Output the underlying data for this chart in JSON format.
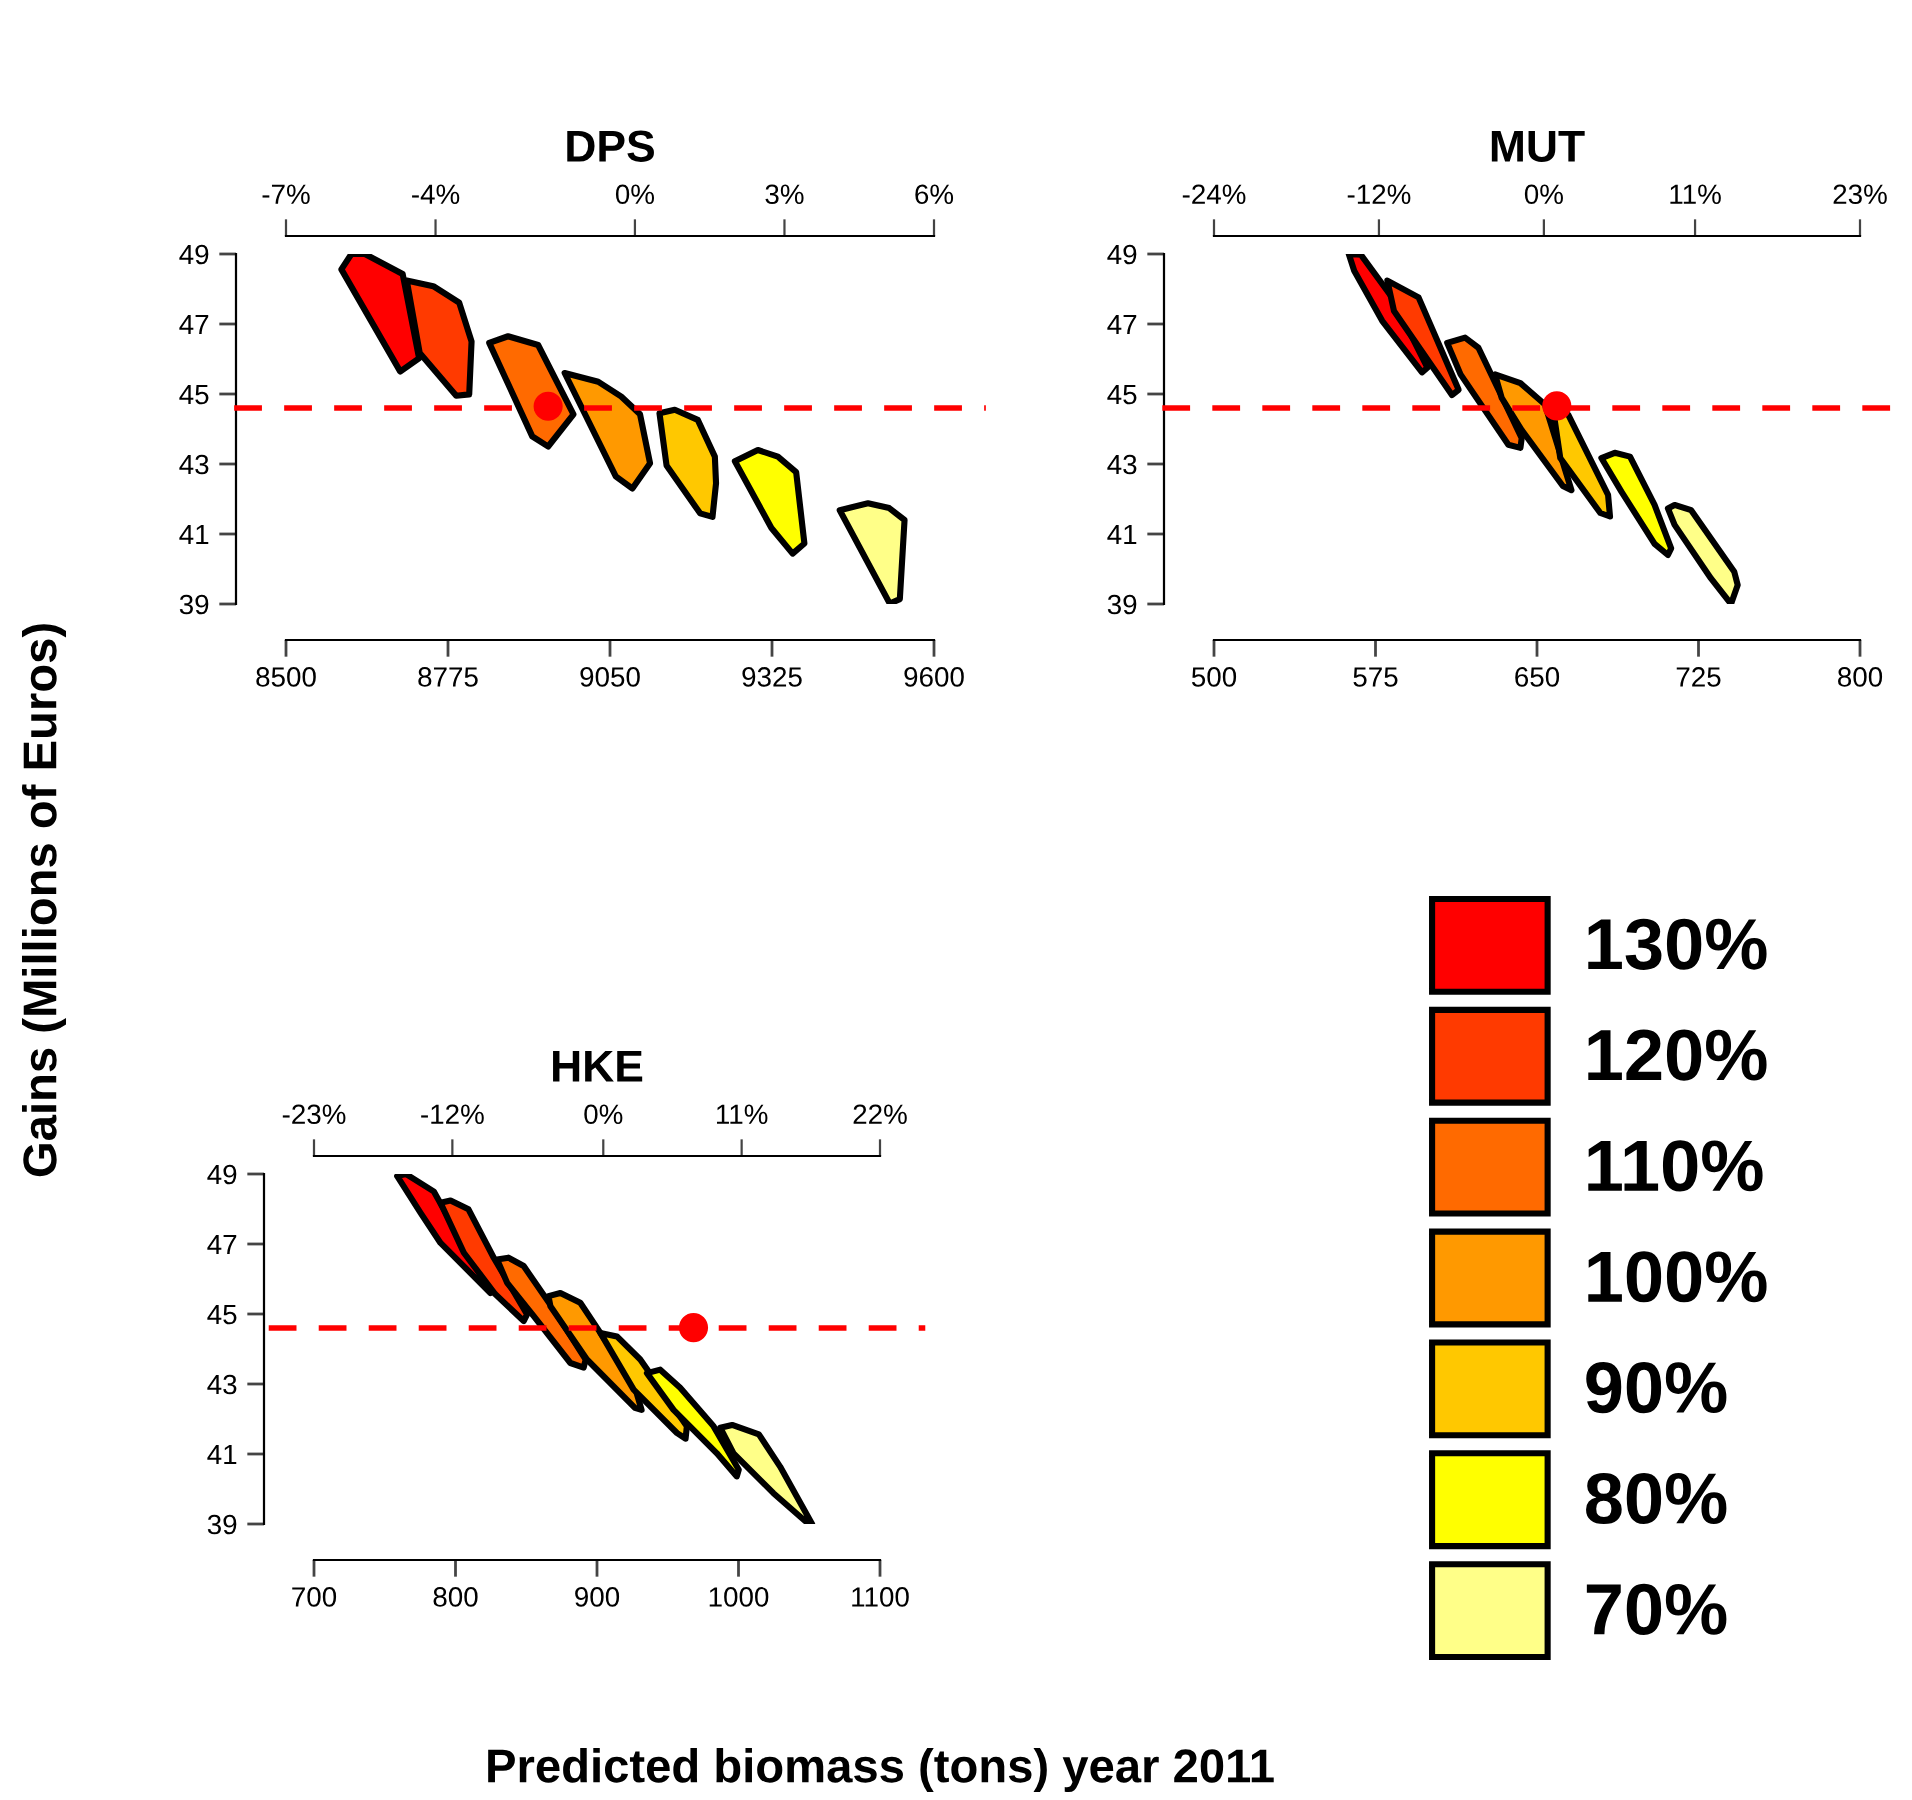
{
  "chart_data": [
    {
      "type": "area",
      "title": "DPS",
      "ylabel": "Gains (Millions of Euros)",
      "xlim": [
        8500,
        9600
      ],
      "ylim": [
        39,
        49
      ],
      "xticks": [
        8500,
        8775,
        9050,
        9325,
        9600
      ],
      "yticks": [
        39,
        41,
        43,
        45,
        47,
        49
      ],
      "x2lim": [
        -7,
        6
      ],
      "x2ticks": [
        {
          "value": -7,
          "label": "-7%"
        },
        {
          "value": -4,
          "label": "-4%"
        },
        {
          "value": 0,
          "label": "0%"
        },
        {
          "value": 3,
          "label": "3%"
        },
        {
          "value": 6,
          "label": "6%"
        }
      ],
      "grid": false,
      "legend": false,
      "ref_lines": [
        {
          "axis": "y",
          "value": 44.6,
          "label": null,
          "color": "#ff0000",
          "line_style": "dashed"
        }
      ],
      "series": [
        {
          "color": "#ff0000",
          "x": [
            8594,
            8611,
            8634,
            8698,
            8726,
            8694
          ],
          "values": [
            48.56,
            49.0,
            49.0,
            48.43,
            46.02,
            45.64
          ]
        },
        {
          "color": "#ff3a00",
          "x": [
            8705,
            8750,
            8794,
            8815,
            8811,
            8789,
            8727
          ],
          "values": [
            48.24,
            48.08,
            47.61,
            46.5,
            44.99,
            44.95,
            46.17
          ]
        },
        {
          "color": "#ff6a00",
          "x": [
            8845,
            8877,
            8928,
            8988,
            8945,
            8918
          ],
          "values": [
            46.46,
            46.65,
            46.4,
            44.42,
            43.5,
            43.79
          ]
        },
        {
          "color": "#ff9900",
          "x": [
            8973,
            9030,
            9069,
            9101,
            9118,
            9088,
            9060
          ],
          "values": [
            45.6,
            45.35,
            44.93,
            44.42,
            43.02,
            42.3,
            42.64
          ]
        },
        {
          "color": "#ffc800",
          "x": [
            9134,
            9160,
            9199,
            9228,
            9230,
            9224,
            9203,
            9146
          ],
          "values": [
            44.45,
            44.55,
            44.26,
            43.21,
            42.45,
            41.49,
            41.59,
            42.96
          ]
        },
        {
          "color": "#ffff00",
          "x": [
            9262,
            9301,
            9335,
            9366,
            9380,
            9360,
            9324
          ],
          "values": [
            43.08,
            43.4,
            43.21,
            42.77,
            40.73,
            40.44,
            41.17
          ]
        },
        {
          "color": "#ffff88",
          "x": [
            9440,
            9488,
            9524,
            9550,
            9542,
            9525
          ],
          "values": [
            41.68,
            41.88,
            41.74,
            41.4,
            39.14,
            39.01
          ]
        },
        {
          "type": "scatter",
          "color": "#ff0000",
          "marker": "circle",
          "x": [
            8945
          ],
          "values": [
            44.65
          ]
        }
      ]
    },
    {
      "type": "area",
      "title": "MUT",
      "xlim": [
        500,
        800
      ],
      "ylim": [
        39,
        49
      ],
      "xticks": [
        500,
        575,
        650,
        725,
        800
      ],
      "yticks": [
        39,
        41,
        43,
        45,
        47,
        49
      ],
      "x2lim": [
        -24,
        23
      ],
      "x2ticks": [
        {
          "value": -24,
          "label": "-24%"
        },
        {
          "value": -12,
          "label": "-12%"
        },
        {
          "value": 0,
          "label": "0%"
        },
        {
          "value": 11,
          "label": "11%"
        },
        {
          "value": 23,
          "label": "23%"
        }
      ],
      "grid": false,
      "legend": false,
      "ref_lines": [
        {
          "axis": "y",
          "value": 44.6,
          "label": null,
          "color": "#ff0000",
          "line_style": "dashed"
        }
      ],
      "series": [
        {
          "color": "#ff0000",
          "x": [
            562.6,
            568.2,
            582.7,
            599.1,
            596.6,
            578.1,
            565.1
          ],
          "values": [
            49.0,
            48.98,
            47.76,
            45.75,
            45.62,
            47.09,
            48.52
          ]
        },
        {
          "color": "#ff3a00",
          "x": [
            580.5,
            595.0,
            613.6,
            610.5,
            583.6
          ],
          "values": [
            48.24,
            47.76,
            45.12,
            44.97,
            47.37
          ]
        },
        {
          "color": "#ff6a00",
          "x": [
            608.3,
            616.6,
            622.8,
            642.9,
            642.3,
            636.7,
            614.5
          ],
          "values": [
            46.46,
            46.61,
            46.32,
            43.74,
            43.46,
            43.55,
            45.56
          ]
        },
        {
          "color": "#ff9900",
          "x": [
            630.5,
            642.3,
            653.7,
            666.0,
            662.0,
            642.9,
            633.6
          ],
          "values": [
            45.56,
            45.31,
            44.7,
            42.25,
            42.37,
            43.97,
            44.89
          ]
        },
        {
          "color": "#ffc800",
          "x": [
            656.8,
            664.5,
            683.0,
            683.9,
            679.4,
            660.8
          ],
          "values": [
            44.85,
            44.41,
            42.12,
            41.5,
            41.6,
            43.17
          ]
        },
        {
          "color": "#ffff00",
          "x": [
            679.9,
            686.1,
            693.2,
            704.6,
            712.3,
            710.8,
            704.6,
            689.2
          ],
          "values": [
            43.17,
            43.32,
            43.21,
            41.83,
            40.59,
            40.4,
            40.72,
            42.21
          ]
        },
        {
          "color": "#ffff88",
          "x": [
            710.8,
            713.9,
            721.6,
            741.6,
            743.2,
            740.1,
            730.8,
            713.9
          ],
          "values": [
            41.73,
            41.83,
            41.68,
            39.92,
            39.54,
            39.0,
            39.73,
            41.26
          ]
        },
        {
          "type": "scatter",
          "color": "#ff0000",
          "marker": "circle",
          "x": [
            659.2
          ],
          "values": [
            44.66
          ]
        }
      ]
    },
    {
      "type": "area",
      "title": "HKE",
      "xlabel": "Predicted biomass (tons) year 2011",
      "xlim": [
        700,
        1100
      ],
      "ylim": [
        39,
        49
      ],
      "xticks": [
        700,
        800,
        900,
        1000,
        1100
      ],
      "yticks": [
        39,
        41,
        43,
        45,
        47,
        49
      ],
      "x2lim": [
        -23,
        22
      ],
      "x2ticks": [
        {
          "value": -23,
          "label": "-23%"
        },
        {
          "value": -12,
          "label": "-12%"
        },
        {
          "value": 0,
          "label": "0%"
        },
        {
          "value": 11,
          "label": "11%"
        },
        {
          "value": 22,
          "label": "22%"
        }
      ],
      "grid": false,
      "legend": "right",
      "ref_lines": [
        {
          "axis": "y",
          "value": 44.6,
          "label": null,
          "color": "#ff0000",
          "line_style": "dashed"
        }
      ],
      "series": [
        {
          "name": "130%",
          "color": "#ff0000",
          "x": [
            758.8,
            764.9,
            784.7,
            824.7,
            789.4,
            775.3
          ],
          "values": [
            48.94,
            49.0,
            48.5,
            45.6,
            47.03,
            47.89
          ]
        },
        {
          "name": "120%",
          "color": "#ff3a00",
          "x": [
            789.4,
            796.5,
            809.2,
            827.1,
            850.6,
            848.2,
            828.0,
            805.9
          ],
          "values": [
            48.18,
            48.24,
            47.99,
            46.6,
            44.99,
            44.8,
            45.57,
            46.75
          ]
        },
        {
          "name": "110%",
          "color": "#ff6a00",
          "x": [
            829.4,
            837.4,
            848.2,
            869.4,
            892.0,
            890.6,
            881.2,
            855.3,
            836.5
          ],
          "values": [
            46.56,
            46.61,
            46.37,
            45.13,
            43.7,
            43.47,
            43.6,
            44.94,
            45.89
          ]
        },
        {
          "name": "100%",
          "color": "#ff9900",
          "x": [
            865.7,
            874.1,
            888.2,
            902.4,
            925.9,
            931.5,
            926.8,
            892.9,
            867.1
          ],
          "values": [
            45.51,
            45.6,
            45.32,
            44.46,
            43.03,
            42.26,
            42.32,
            43.7,
            45.22
          ]
        },
        {
          "name": "90%",
          "color": "#ffc800",
          "x": [
            902.4,
            914.1,
            930.6,
            963.5,
            962.6,
            956.5,
            925.9
          ],
          "values": [
            44.46,
            44.36,
            43.7,
            41.79,
            41.44,
            41.6,
            42.84
          ]
        },
        {
          "name": "80%",
          "color": "#ffff00",
          "x": [
            935.3,
            944.7,
            958.8,
            982.4,
            1000.2,
            998.8,
            984.7,
            954.1
          ],
          "values": [
            43.31,
            43.41,
            42.89,
            41.79,
            40.55,
            40.36,
            41.02,
            42.26
          ]
        },
        {
          "name": "70%",
          "color": "#ffff88",
          "x": [
            987.1,
            995.5,
            1014.4,
            1029.4,
            1052.0,
            1047.3,
            1024.7,
            996.5
          ],
          "values": [
            41.75,
            41.83,
            41.56,
            40.64,
            39.0,
            39.08,
            39.88,
            41.02
          ]
        },
        {
          "type": "scatter",
          "color": "#ff0000",
          "marker": "circle",
          "x": [
            968.2
          ],
          "values": [
            44.61
          ]
        }
      ]
    }
  ]
}
